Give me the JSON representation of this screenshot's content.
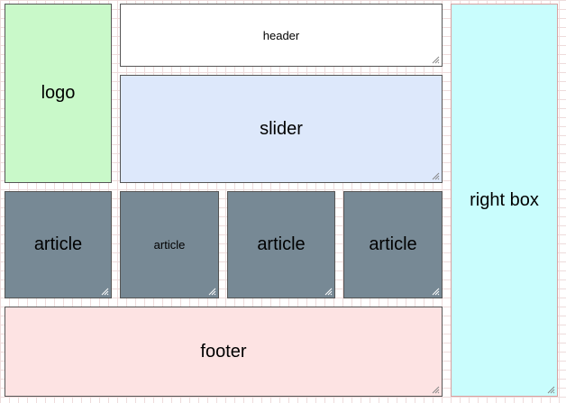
{
  "boxes": {
    "logo": "logo",
    "header": "header",
    "slider": "slider",
    "right_box": "right box",
    "articles": [
      "article",
      "article",
      "article",
      "article"
    ],
    "footer": "footer"
  },
  "icons": {
    "resize_grip": "resize-grip-icon"
  },
  "colors": {
    "logo_bg": "#c9f9c9",
    "header_bg": "#ffffff",
    "slider_bg": "#dde8fb",
    "article_bg": "#778995",
    "right_box_bg": "#c9fdfd",
    "footer_bg": "#fde3e3"
  }
}
